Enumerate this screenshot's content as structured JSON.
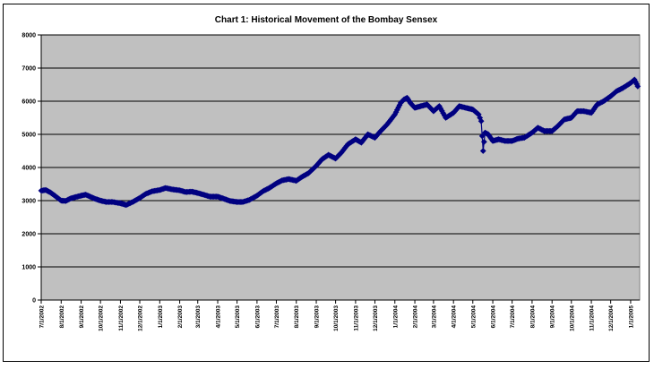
{
  "chart_data": {
    "type": "scatter",
    "title": "Chart 1: Historical Movement of the Bombay Sensex",
    "xlabel": "",
    "ylabel": "",
    "ylim": [
      0,
      8000
    ],
    "yticks": [
      0,
      1000,
      2000,
      3000,
      4000,
      5000,
      6000,
      7000,
      8000
    ],
    "x_tick_labels": [
      "7/1/2002",
      "8/1/2002",
      "9/1/2002",
      "10/1/2002",
      "11/1/2002",
      "12/1/2002",
      "1/1/2003",
      "2/1/2003",
      "3/1/2003",
      "4/1/2003",
      "5/1/2003",
      "6/1/2003",
      "7/1/2003",
      "8/1/2003",
      "9/1/2003",
      "10/1/2003",
      "11/1/2003",
      "12/1/2003",
      "1/1/2004",
      "2/1/2004",
      "3/1/2004",
      "4/1/2004",
      "5/1/2004",
      "6/1/2004",
      "7/1/2004",
      "8/1/2004",
      "9/1/2004",
      "10/1/2004",
      "11/1/2004",
      "12/1/2004",
      "1/1/2005"
    ],
    "grid": true,
    "legend": "none",
    "plot_background": "#c0c0c0",
    "marker_color": "#000080",
    "series": [
      {
        "marker": "diamond",
        "x": [
          "2002-07-01",
          "2002-07-08",
          "2002-07-15",
          "2002-07-22",
          "2002-08-01",
          "2002-08-08",
          "2002-08-15",
          "2002-08-22",
          "2002-09-01",
          "2002-09-08",
          "2002-09-15",
          "2002-09-22",
          "2002-10-01",
          "2002-10-10",
          "2002-10-20",
          "2002-11-01",
          "2002-11-10",
          "2002-11-20",
          "2002-12-01",
          "2002-12-10",
          "2002-12-20",
          "2003-01-01",
          "2003-01-10",
          "2003-01-20",
          "2003-02-01",
          "2003-02-10",
          "2003-02-20",
          "2003-03-01",
          "2003-03-10",
          "2003-03-20",
          "2003-04-01",
          "2003-04-10",
          "2003-04-20",
          "2003-05-01",
          "2003-05-10",
          "2003-05-20",
          "2003-06-01",
          "2003-06-10",
          "2003-06-20",
          "2003-07-01",
          "2003-07-10",
          "2003-07-20",
          "2003-08-01",
          "2003-08-10",
          "2003-08-20",
          "2003-09-01",
          "2003-09-10",
          "2003-09-20",
          "2003-10-01",
          "2003-10-10",
          "2003-10-20",
          "2003-11-01",
          "2003-11-10",
          "2003-11-20",
          "2003-12-01",
          "2003-12-10",
          "2003-12-20",
          "2004-01-01",
          "2004-01-10",
          "2004-01-15",
          "2004-01-20",
          "2004-01-25",
          "2004-02-01",
          "2004-02-10",
          "2004-02-20",
          "2004-03-01",
          "2004-03-10",
          "2004-03-20",
          "2004-04-01",
          "2004-04-10",
          "2004-04-20",
          "2004-05-01",
          "2004-05-10",
          "2004-05-14",
          "2004-05-17",
          "2004-05-20",
          "2004-05-25",
          "2004-06-01",
          "2004-06-10",
          "2004-06-20",
          "2004-07-01",
          "2004-07-10",
          "2004-07-20",
          "2004-08-01",
          "2004-08-10",
          "2004-08-20",
          "2004-09-01",
          "2004-09-10",
          "2004-09-20",
          "2004-10-01",
          "2004-10-10",
          "2004-10-20",
          "2004-11-01",
          "2004-11-10",
          "2004-11-20",
          "2004-12-01",
          "2004-12-10",
          "2004-12-20",
          "2005-01-01",
          "2005-01-07",
          "2005-01-12"
        ],
        "y": [
          3300,
          3320,
          3250,
          3150,
          3000,
          2990,
          3060,
          3100,
          3150,
          3180,
          3120,
          3060,
          3000,
          2960,
          2960,
          2920,
          2870,
          2960,
          3080,
          3200,
          3280,
          3320,
          3380,
          3340,
          3310,
          3260,
          3270,
          3230,
          3180,
          3120,
          3120,
          3060,
          2990,
          2960,
          2960,
          3020,
          3150,
          3280,
          3380,
          3520,
          3610,
          3650,
          3600,
          3720,
          3830,
          4050,
          4250,
          4380,
          4270,
          4450,
          4700,
          4850,
          4750,
          5000,
          4900,
          5100,
          5300,
          5600,
          5950,
          6050,
          6100,
          5950,
          5800,
          5850,
          5900,
          5700,
          5850,
          5500,
          5650,
          5850,
          5800,
          5750,
          5600,
          5400,
          4500,
          5050,
          5000,
          4800,
          4850,
          4800,
          4800,
          4870,
          4900,
          5050,
          5200,
          5100,
          5100,
          5250,
          5450,
          5500,
          5700,
          5700,
          5650,
          5900,
          6000,
          6150,
          6300,
          6400,
          6550,
          6650,
          6450
        ]
      }
    ]
  }
}
